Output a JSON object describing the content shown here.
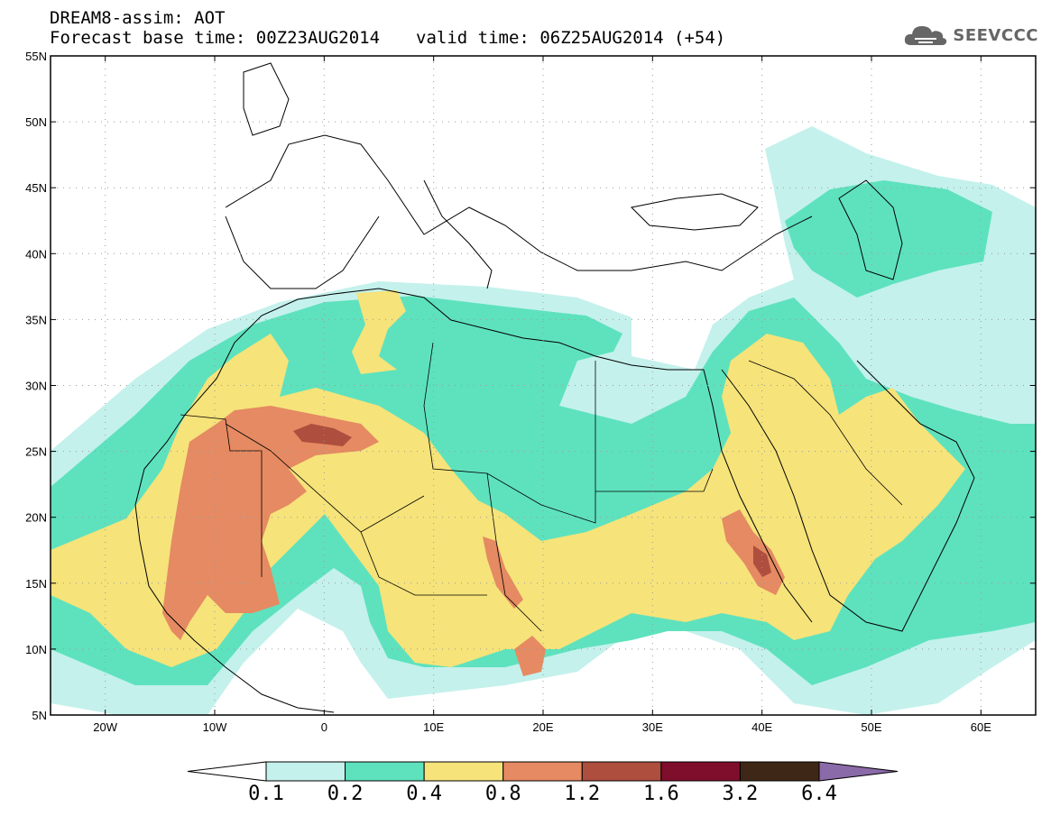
{
  "header": {
    "line1": "DREAM8-assim: AOT",
    "base_time": "Forecast base time: 00Z23AUG2014",
    "valid_time": "valid time: 06Z25AUG2014 (+54)"
  },
  "logo": {
    "text": "SEEVCCC",
    "icon": "cloud-icon"
  },
  "map": {
    "lon_range": [
      -25,
      65
    ],
    "lat_range": [
      5,
      55
    ],
    "lon_ticks": [
      "20W",
      "10W",
      "0",
      "10E",
      "20E",
      "30E",
      "40E",
      "50E",
      "60E"
    ],
    "lat_ticks": [
      "55N",
      "50N",
      "45N",
      "40N",
      "35N",
      "30N",
      "25N",
      "20N",
      "15N",
      "10N",
      "5N"
    ],
    "gridlines": "dotted"
  },
  "colorbar": {
    "labels": [
      "0.1",
      "0.2",
      "0.4",
      "0.8",
      "1.2",
      "1.6",
      "3.2",
      "6.4"
    ],
    "colors": [
      "#c4f1ec",
      "#5ee2bd",
      "#f6e37a",
      "#e58a62",
      "#ad4e3e",
      "#7f0d2c",
      "#3e2716"
    ],
    "under_color": "#ffffff",
    "over_color": "#8a6aa8"
  },
  "colors": {
    "c01": "#c4f1ec",
    "c02": "#5ee2bd",
    "c04": "#f6e37a",
    "c08": "#e58a62",
    "c12": "#ad4e3e",
    "c16": "#7f0d2c"
  }
}
